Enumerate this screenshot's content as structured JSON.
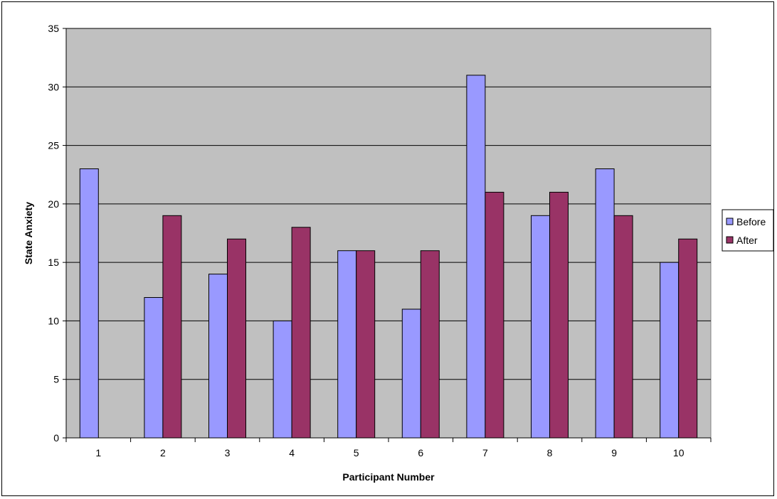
{
  "chart_data": {
    "type": "bar",
    "title": "",
    "xlabel": "Participant Number",
    "ylabel": "State Anxiety",
    "categories": [
      "1",
      "2",
      "3",
      "4",
      "5",
      "6",
      "7",
      "8",
      "9",
      "10"
    ],
    "series": [
      {
        "name": "Before",
        "color": "#9999ff",
        "values": [
          23,
          12,
          14,
          10,
          16,
          11,
          31,
          19,
          23,
          15
        ]
      },
      {
        "name": "After",
        "color": "#993366",
        "values": [
          null,
          19,
          17,
          18,
          16,
          16,
          21,
          21,
          19,
          17
        ]
      }
    ],
    "ylim": [
      0,
      35
    ],
    "yticks": [
      0,
      5,
      10,
      15,
      20,
      25,
      30,
      35
    ],
    "grid": true,
    "plot_background": "#c0c0c0",
    "legend_position": "right"
  }
}
